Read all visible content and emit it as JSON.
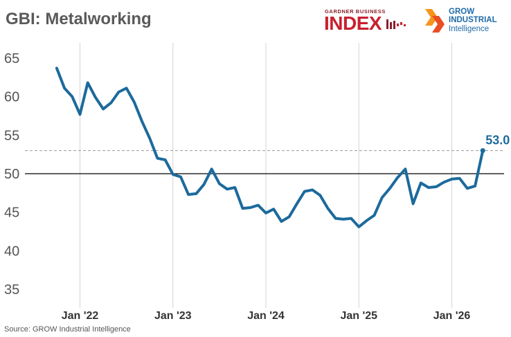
{
  "title": "GBI: Metalworking",
  "source": "Source: GROW Industrial Intelligence",
  "logos": {
    "gbi_small": "GARDNER BUSINESS",
    "gbi_big": "INDEX",
    "grow_line1": "GROW",
    "grow_line2": "INDUSTRIAL",
    "grow_line3": "Intelligence"
  },
  "colors": {
    "line": "#1c6a9c",
    "title": "#5a5a5a",
    "gbi_red": "#c8202f",
    "grow_blue": "#1e6aa8",
    "grow_orange": "#f7941d"
  },
  "chart_data": {
    "type": "line",
    "title": "GBI: Metalworking",
    "xlabel": "",
    "ylabel": "",
    "ylim": [
      32.5,
      67.5
    ],
    "yticks": [
      35,
      40,
      45,
      50,
      55,
      60,
      65
    ],
    "x_tick_labels": [
      "Jan '22",
      "Jan '23",
      "Jan '24",
      "Jan '25",
      "Jan '26"
    ],
    "x_tick_index": [
      3,
      15,
      27,
      39,
      51
    ],
    "x_range": [
      0,
      60
    ],
    "grid": "vertical at x ticks",
    "reference_line": 50,
    "last_value_label": "53.0",
    "series": [
      {
        "values": [
          63.7,
          61.1,
          60.0,
          57.7,
          61.8,
          59.9,
          58.4,
          59.2,
          60.6,
          61.1,
          59.3,
          56.8,
          54.6,
          52.0,
          51.8,
          49.9,
          49.6,
          47.3,
          47.4,
          48.6,
          50.6,
          48.7,
          48.0,
          48.2,
          45.5,
          45.6,
          45.9,
          44.9,
          45.4,
          43.8,
          44.4,
          46.1,
          47.7,
          47.9,
          47.2,
          45.5,
          44.2,
          44.1,
          44.2,
          43.1,
          43.9,
          44.6,
          46.9,
          48.1,
          49.5,
          50.6,
          46.1,
          48.8,
          48.2,
          48.3,
          48.9,
          49.3,
          49.4,
          48.1,
          48.4,
          53.0
        ]
      }
    ]
  }
}
